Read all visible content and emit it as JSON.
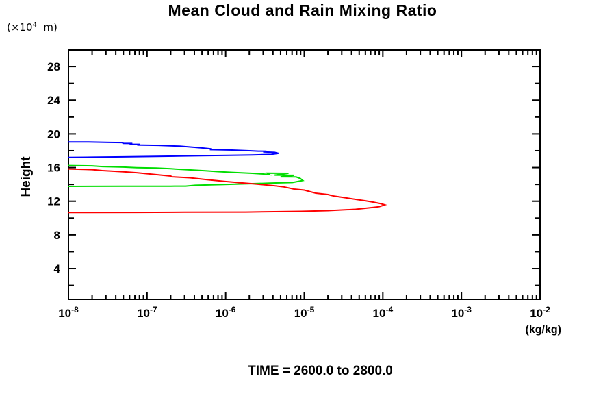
{
  "title": "Mean Cloud and Rain Mixing Ratio",
  "footer": "TIME = 2600.0 to 2800.0",
  "y_axis": {
    "axis_title": "Height",
    "unit_prefix": "(×10",
    "unit_exp": "4",
    "unit_suffix": "  m)",
    "major_ticks": [
      4,
      8,
      12,
      16,
      20,
      24,
      28
    ],
    "minor_ticks": [
      2,
      6,
      10,
      14,
      18,
      22,
      26,
      30
    ],
    "range": [
      0.34,
      29.96
    ]
  },
  "x_axis": {
    "unit_label": "(kg/kg)",
    "scale": "log",
    "tick_base": "10",
    "tick_exponents": [
      -8,
      -7,
      -6,
      -5,
      -4,
      -3,
      -2
    ],
    "minor_multiples": [
      2,
      3,
      4,
      5,
      6,
      7,
      8,
      9
    ]
  },
  "chart_data": {
    "type": "line",
    "title": "Mean Cloud and Rain Mixing Ratio",
    "xlabel": "(kg/kg)",
    "ylabel": "Height (×10⁴ m)",
    "xscale": "log",
    "xlim": [
      1e-08,
      0.01
    ],
    "ylim": [
      0.34,
      29.96
    ],
    "grid": false,
    "legend": "none",
    "frame_color": "#000000",
    "background": "#ffffff",
    "series": [
      {
        "name": "blue-profile",
        "color": "#0000ff",
        "points": [
          [
            1e-08,
            19.03
          ],
          [
            1.8e-08,
            19.03
          ],
          [
            3.3e-08,
            18.98
          ],
          [
            4.8e-08,
            18.97
          ],
          [
            5e-08,
            18.88
          ],
          [
            6.5e-08,
            18.86
          ],
          [
            6e-08,
            18.77
          ],
          [
            8.2e-08,
            18.76
          ],
          [
            7.5e-08,
            18.68
          ],
          [
            1.4e-07,
            18.64
          ],
          [
            2.6e-07,
            18.54
          ],
          [
            5e-07,
            18.33
          ],
          [
            6.7e-07,
            18.21
          ],
          [
            6.3e-07,
            18.13
          ],
          [
            1.2e-06,
            18.08
          ],
          [
            2e-06,
            18.0
          ],
          [
            2.6e-06,
            17.95
          ],
          [
            3.3e-06,
            17.93
          ],
          [
            3e-06,
            17.86
          ],
          [
            4.2e-06,
            17.8
          ],
          [
            4.7e-06,
            17.68
          ],
          [
            3.8e-06,
            17.56
          ],
          [
            2.2e-06,
            17.49
          ],
          [
            1.1e-06,
            17.45
          ],
          [
            5e-07,
            17.4
          ],
          [
            2.5e-07,
            17.36
          ],
          [
            1.3e-07,
            17.32
          ],
          [
            5e-08,
            17.27
          ],
          [
            2e-08,
            17.23
          ],
          [
            1e-08,
            17.2
          ]
        ]
      },
      {
        "name": "green-profile",
        "color": "#00dd00",
        "points": [
          [
            1e-08,
            16.24
          ],
          [
            2e-08,
            16.2
          ],
          [
            2.7e-08,
            16.12
          ],
          [
            5e-08,
            16.05
          ],
          [
            7.4e-08,
            15.99
          ],
          [
            1.3e-07,
            15.94
          ],
          [
            2e-07,
            15.86
          ],
          [
            3e-07,
            15.76
          ],
          [
            5.5e-07,
            15.62
          ],
          [
            8e-07,
            15.52
          ],
          [
            1.2e-06,
            15.43
          ],
          [
            2.2e-06,
            15.31
          ],
          [
            3e-06,
            15.23
          ],
          [
            3.6e-06,
            15.16
          ],
          [
            3.4e-06,
            15.33
          ],
          [
            6.3e-06,
            15.31
          ],
          [
            4.2e-06,
            15.1
          ],
          [
            7.4e-06,
            15.08
          ],
          [
            5e-06,
            14.9
          ],
          [
            7.9e-06,
            14.88
          ],
          [
            8.9e-06,
            14.7
          ],
          [
            9.6e-06,
            14.46
          ],
          [
            7.1e-06,
            14.22
          ],
          [
            3.6e-06,
            14.15
          ],
          [
            1.9e-06,
            14.07
          ],
          [
            9.6e-07,
            13.99
          ],
          [
            4.1e-07,
            13.9
          ],
          [
            3.1e-07,
            13.8
          ],
          [
            2e-07,
            13.79
          ],
          [
            5e-08,
            13.78
          ],
          [
            1e-08,
            13.77
          ]
        ]
      },
      {
        "name": "red-profile",
        "color": "#ff0000",
        "points": [
          [
            1e-08,
            15.83
          ],
          [
            2e-08,
            15.75
          ],
          [
            2.7e-08,
            15.64
          ],
          [
            5e-08,
            15.5
          ],
          [
            7.4e-08,
            15.39
          ],
          [
            1.3e-07,
            15.16
          ],
          [
            2e-07,
            14.99
          ],
          [
            2.1e-07,
            14.9
          ],
          [
            3.5e-07,
            14.78
          ],
          [
            5.5e-07,
            14.58
          ],
          [
            9.6e-07,
            14.35
          ],
          [
            1.5e-06,
            14.21
          ],
          [
            2.5e-06,
            14.03
          ],
          [
            4.1e-06,
            13.85
          ],
          [
            5.5e-06,
            13.7
          ],
          [
            7.4e-06,
            13.44
          ],
          [
            1e-05,
            13.32
          ],
          [
            1.4e-05,
            12.95
          ],
          [
            2e-05,
            12.79
          ],
          [
            2.4e-05,
            12.6
          ],
          [
            3e-05,
            12.47
          ],
          [
            4.5e-05,
            12.22
          ],
          [
            6e-05,
            12.05
          ],
          [
            7.4e-05,
            11.9
          ],
          [
            9.5e-05,
            11.7
          ],
          [
            0.000106,
            11.57
          ],
          [
            9e-05,
            11.35
          ],
          [
            7.4e-05,
            11.25
          ],
          [
            4.5e-05,
            11.04
          ],
          [
            2e-05,
            10.88
          ],
          [
            9.1e-06,
            10.8
          ],
          [
            1.8e-06,
            10.71
          ],
          [
            3e-07,
            10.69
          ],
          [
            7.4e-08,
            10.67
          ],
          [
            1e-08,
            10.65
          ]
        ]
      }
    ]
  }
}
